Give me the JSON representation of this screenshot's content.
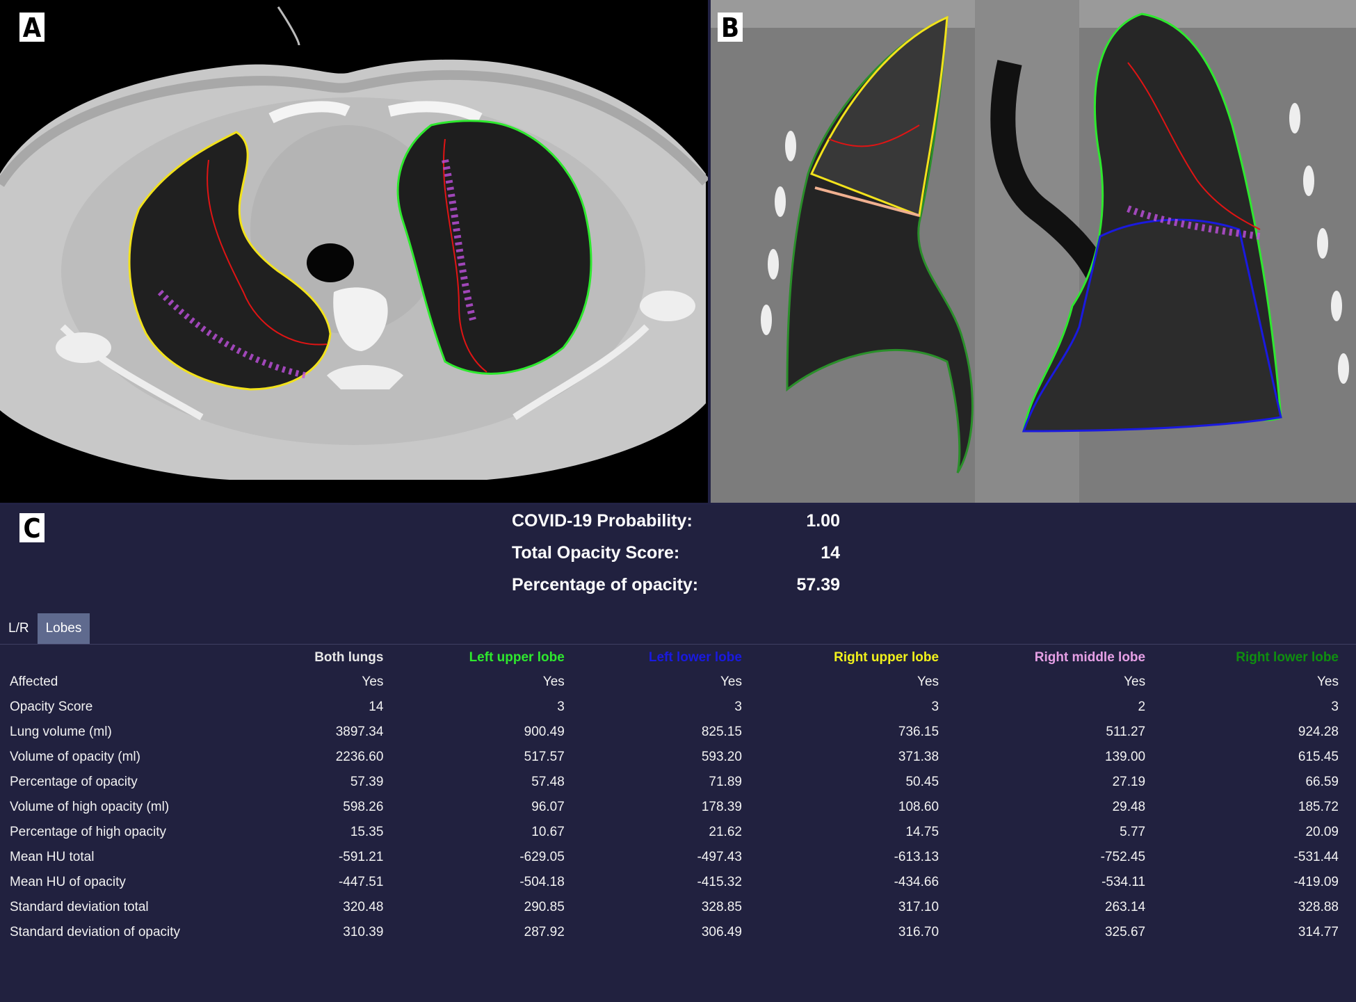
{
  "panels": {
    "a": {
      "label": "A"
    },
    "b": {
      "label": "B"
    },
    "c": {
      "label": "C"
    }
  },
  "summary": {
    "covid_probability_label": "COVID-19 Probability:",
    "covid_probability_value": "1.00",
    "total_opacity_score_label": "Total Opacity Score:",
    "total_opacity_score_value": "14",
    "percentage_opacity_label": "Percentage of opacity:",
    "percentage_opacity_value": "57.39"
  },
  "tabs": [
    {
      "label": "L/R",
      "active": true
    },
    {
      "label": "Lobes",
      "active": false
    }
  ],
  "columns": [
    {
      "label": "Both lungs",
      "color": "#e8e8e8"
    },
    {
      "label": "Left upper lobe",
      "color": "#2ee82e"
    },
    {
      "label": "Left lower lobe",
      "color": "#1a1adf"
    },
    {
      "label": "Right upper lobe",
      "color": "#f2f21c"
    },
    {
      "label": "Right middle lobe",
      "color": "#e6a0e6"
    },
    {
      "label": "Right lower lobe",
      "color": "#0f8f0f"
    }
  ],
  "rows": [
    {
      "label": "Affected",
      "values": [
        "Yes",
        "Yes",
        "Yes",
        "Yes",
        "Yes",
        "Yes"
      ]
    },
    {
      "label": "Opacity Score",
      "values": [
        "14",
        "3",
        "3",
        "3",
        "2",
        "3"
      ]
    },
    {
      "label": "Lung volume (ml)",
      "values": [
        "3897.34",
        "900.49",
        "825.15",
        "736.15",
        "511.27",
        "924.28"
      ]
    },
    {
      "label": "Volume of opacity (ml)",
      "values": [
        "2236.60",
        "517.57",
        "593.20",
        "371.38",
        "139.00",
        "615.45"
      ]
    },
    {
      "label": "Percentage of opacity",
      "values": [
        "57.39",
        "57.48",
        "71.89",
        "50.45",
        "27.19",
        "66.59"
      ]
    },
    {
      "label": "Volume of high opacity (ml)",
      "values": [
        "598.26",
        "96.07",
        "178.39",
        "108.60",
        "29.48",
        "185.72"
      ]
    },
    {
      "label": "Percentage of high opacity",
      "values": [
        "15.35",
        "10.67",
        "21.62",
        "14.75",
        "5.77",
        "20.09"
      ]
    },
    {
      "label": "Mean HU total",
      "values": [
        "-591.21",
        "-629.05",
        "-497.43",
        "-613.13",
        "-752.45",
        "-531.44"
      ]
    },
    {
      "label": "Mean HU of opacity",
      "values": [
        "-447.51",
        "-504.18",
        "-415.32",
        "-434.66",
        "-534.11",
        "-419.09"
      ]
    },
    {
      "label": "Standard deviation total",
      "values": [
        "320.48",
        "290.85",
        "328.85",
        "317.10",
        "263.14",
        "328.88"
      ]
    },
    {
      "label": "Standard deviation of opacity",
      "values": [
        "310.39",
        "287.92",
        "306.49",
        "316.70",
        "325.67",
        "314.77"
      ]
    }
  ],
  "contour_colors": {
    "right_lung": "#f2e21c",
    "left_lung": "#2ee82e",
    "opacity": "#e01414",
    "ground_glass": "#c050e0",
    "lower_lobe": "#1a1adf",
    "fissure": "#f0b090"
  }
}
